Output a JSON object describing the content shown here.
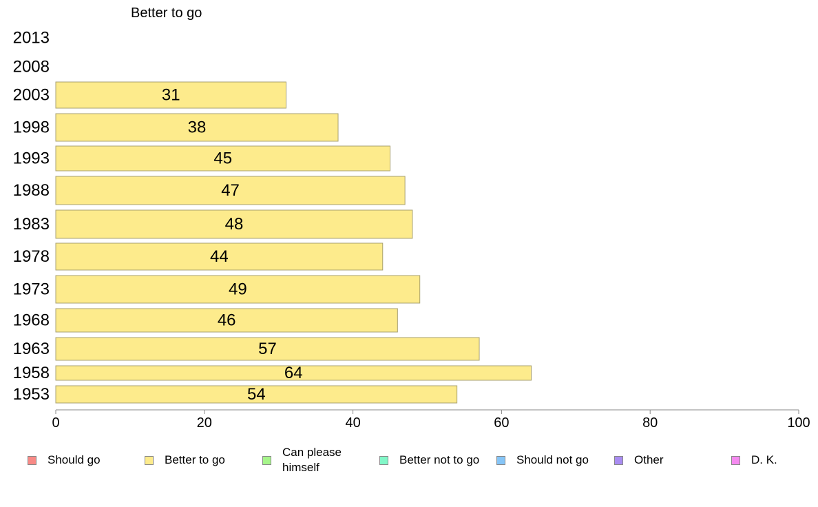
{
  "chart_data": {
    "type": "bar",
    "orientation": "horizontal",
    "title": "Better to go",
    "categories": [
      "2013",
      "2008",
      "2003",
      "1998",
      "1993",
      "1988",
      "1983",
      "1978",
      "1973",
      "1968",
      "1963",
      "1958",
      "1953"
    ],
    "series": [
      {
        "name": "Should go",
        "values": [
          null,
          null,
          null,
          null,
          null,
          null,
          null,
          null,
          null,
          null,
          null,
          null,
          null
        ]
      },
      {
        "name": "Better to go",
        "values": [
          null,
          null,
          31,
          38,
          45,
          47,
          48,
          44,
          49,
          46,
          57,
          64,
          54
        ]
      },
      {
        "name": "Can please himself",
        "values": [
          null,
          null,
          null,
          null,
          null,
          null,
          null,
          null,
          null,
          null,
          null,
          null,
          null
        ]
      },
      {
        "name": "Better not to go",
        "values": [
          null,
          null,
          null,
          null,
          null,
          null,
          null,
          null,
          null,
          null,
          null,
          null,
          null
        ]
      },
      {
        "name": "Should not go",
        "values": [
          null,
          null,
          null,
          null,
          null,
          null,
          null,
          null,
          null,
          null,
          null,
          null,
          null
        ]
      },
      {
        "name": "Other",
        "values": [
          null,
          null,
          null,
          null,
          null,
          null,
          null,
          null,
          null,
          null,
          null,
          null,
          null
        ]
      },
      {
        "name": "D. K.",
        "values": [
          null,
          null,
          null,
          null,
          null,
          null,
          null,
          null,
          null,
          null,
          null,
          null,
          null
        ]
      }
    ],
    "xlim": [
      0,
      100
    ],
    "xticks": [
      "0",
      "20",
      "40",
      "60",
      "80",
      "100"
    ],
    "xlabel": "",
    "ylabel": "",
    "grid": false,
    "legend_position": "bottom",
    "bar_color": "#fdeb8c",
    "bar_border": "#a8a070"
  },
  "legend": [
    {
      "label": "Should go",
      "color": "#f88a86"
    },
    {
      "label": "Better to go",
      "color": "#fdeb8c"
    },
    {
      "label": "Can please himself",
      "color": "#a6f58a"
    },
    {
      "label": "Better not to go",
      "color": "#82f7c8"
    },
    {
      "label": "Should not go",
      "color": "#86c5f7"
    },
    {
      "label": "Other",
      "color": "#a98cf2"
    },
    {
      "label": "D. K.",
      "color": "#f58af0"
    }
  ]
}
